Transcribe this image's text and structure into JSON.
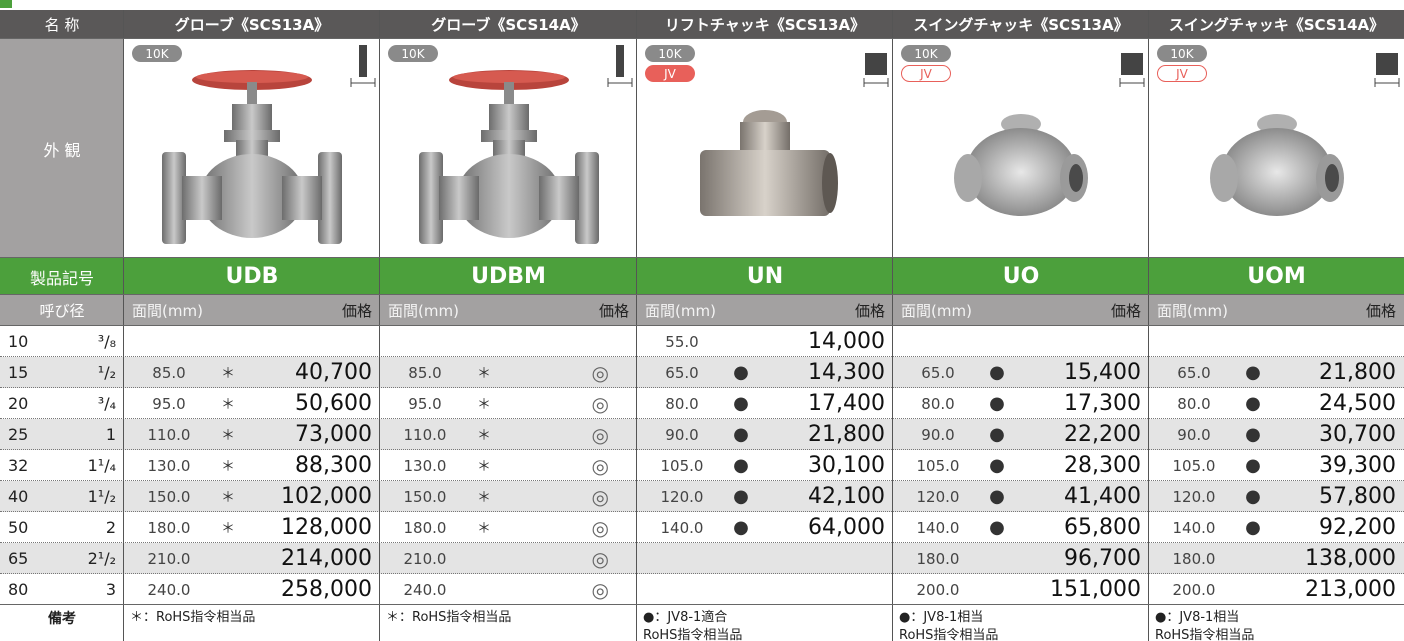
{
  "header": {
    "name_label": "名 称",
    "appearance_label": "外 観",
    "code_label": "製品記号",
    "size_label": "呼び径",
    "remarks_label": "備考"
  },
  "products": [
    {
      "name": "グローブ《SCS13A》",
      "code": "UDB",
      "badges": [
        {
          "text": "10K",
          "style": "gray"
        }
      ],
      "col_labels": [
        "面間(mm)",
        "価格"
      ],
      "remarks": [
        "＊：RoHS指令相当品"
      ]
    },
    {
      "name": "グローブ《SCS14A》",
      "code": "UDBM",
      "badges": [
        {
          "text": "10K",
          "style": "gray"
        }
      ],
      "col_labels": [
        "面間(mm)",
        "価格"
      ],
      "remarks": [
        "＊：RoHS指令相当品"
      ]
    },
    {
      "name": "リフトチャッキ《SCS13A》",
      "code": "UN",
      "badges": [
        {
          "text": "10K",
          "style": "gray"
        },
        {
          "text": "JV",
          "style": "red"
        }
      ],
      "col_labels": [
        "面間(mm)",
        "価格"
      ],
      "remarks": [
        "●：JV8-1適合",
        "RoHS指令相当品"
      ]
    },
    {
      "name": "スイングチャッキ《SCS13A》",
      "code": "UO",
      "badges": [
        {
          "text": "10K",
          "style": "gray"
        },
        {
          "text": "JV",
          "style": "outline"
        }
      ],
      "col_labels": [
        "面間(mm)",
        "価格"
      ],
      "remarks": [
        "●：JV8-1相当",
        "RoHS指令相当品"
      ]
    },
    {
      "name": "スイングチャッキ《SCS14A》",
      "code": "UOM",
      "badges": [
        {
          "text": "10K",
          "style": "gray"
        },
        {
          "text": "JV",
          "style": "outline"
        }
      ],
      "col_labels": [
        "面間(mm)",
        "価格"
      ],
      "remarks": [
        "●：JV8-1相当",
        "RoHS指令相当品"
      ]
    }
  ],
  "table": {
    "rows": [
      {
        "size": "10",
        "inch": "³/₈",
        "cells": [
          null,
          null,
          [
            "55.0",
            null,
            "14,000"
          ],
          null,
          null
        ]
      },
      {
        "size": "15",
        "inch": "¹/₂",
        "cells": [
          [
            "85.0",
            "＊",
            "40,700"
          ],
          [
            "85.0",
            "＊",
            "◎"
          ],
          [
            "65.0",
            "●",
            "14,300"
          ],
          [
            "65.0",
            "●",
            "15,400"
          ],
          [
            "65.0",
            "●",
            "21,800"
          ]
        ]
      },
      {
        "size": "20",
        "inch": "³/₄",
        "cells": [
          [
            "95.0",
            "＊",
            "50,600"
          ],
          [
            "95.0",
            "＊",
            "◎"
          ],
          [
            "80.0",
            "●",
            "17,400"
          ],
          [
            "80.0",
            "●",
            "17,300"
          ],
          [
            "80.0",
            "●",
            "24,500"
          ]
        ]
      },
      {
        "size": "25",
        "inch": "1",
        "cells": [
          [
            "110.0",
            "＊",
            "73,000"
          ],
          [
            "110.0",
            "＊",
            "◎"
          ],
          [
            "90.0",
            "●",
            "21,800"
          ],
          [
            "90.0",
            "●",
            "22,200"
          ],
          [
            "90.0",
            "●",
            "30,700"
          ]
        ]
      },
      {
        "size": "32",
        "inch": "1¹/₄",
        "cells": [
          [
            "130.0",
            "＊",
            "88,300"
          ],
          [
            "130.0",
            "＊",
            "◎"
          ],
          [
            "105.0",
            "●",
            "30,100"
          ],
          [
            "105.0",
            "●",
            "28,300"
          ],
          [
            "105.0",
            "●",
            "39,300"
          ]
        ]
      },
      {
        "size": "40",
        "inch": "1¹/₂",
        "cells": [
          [
            "150.0",
            "＊",
            "102,000"
          ],
          [
            "150.0",
            "＊",
            "◎"
          ],
          [
            "120.0",
            "●",
            "42,100"
          ],
          [
            "120.0",
            "●",
            "41,400"
          ],
          [
            "120.0",
            "●",
            "57,800"
          ]
        ]
      },
      {
        "size": "50",
        "inch": "2",
        "cells": [
          [
            "180.0",
            "＊",
            "128,000"
          ],
          [
            "180.0",
            "＊",
            "◎"
          ],
          [
            "140.0",
            "●",
            "64,000"
          ],
          [
            "140.0",
            "●",
            "65,800"
          ],
          [
            "140.0",
            "●",
            "92,200"
          ]
        ]
      },
      {
        "size": "65",
        "inch": "2¹/₂",
        "cells": [
          [
            "210.0",
            null,
            "214,000"
          ],
          [
            "210.0",
            null,
            "◎"
          ],
          null,
          [
            "180.0",
            null,
            "96,700"
          ],
          [
            "180.0",
            null,
            "138,000"
          ]
        ]
      },
      {
        "size": "80",
        "inch": "3",
        "cells": [
          [
            "240.0",
            null,
            "258,000"
          ],
          [
            "240.0",
            null,
            "◎"
          ],
          null,
          [
            "200.0",
            null,
            "151,000"
          ],
          [
            "200.0",
            null,
            "213,000"
          ]
        ]
      }
    ]
  }
}
